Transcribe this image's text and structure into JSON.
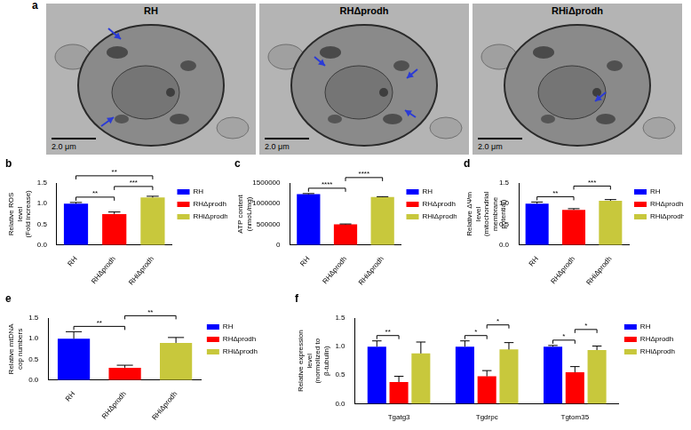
{
  "images": {
    "panel": "a",
    "titles": [
      "RH",
      "RHΔprodh",
      "RHiΔprodh"
    ],
    "scale_bar": "2.0 μm"
  },
  "chart_data": [
    {
      "type": "bar",
      "panel": "b",
      "y_label": "Relative ROS level (Fold increase)",
      "categories": [
        "RH",
        "RHΔprodh",
        "RHiΔprodh"
      ],
      "values": [
        1.0,
        0.75,
        1.15
      ],
      "errors": [
        0.03,
        0.05,
        0.03
      ],
      "colors": [
        "#0000ff",
        "#ff0000",
        "#c8c83c"
      ],
      "ylim": [
        0,
        1.5
      ],
      "yticks": [
        {
          "value": 0,
          "label": "0.0"
        },
        0.5,
        {
          "value": 1,
          "label": "1.0"
        },
        1.5
      ],
      "grid": false,
      "legend": "right",
      "annotations": [
        {
          "from": "RH",
          "to": "RHΔprodh",
          "label": "**"
        },
        {
          "from": "RH",
          "to": "RHiΔprodh",
          "label": "**"
        },
        {
          "from": "RHΔprodh",
          "to": "RHiΔprodh",
          "label": "***"
        }
      ]
    },
    {
      "type": "bar",
      "panel": "c",
      "y_label": "ATP content (nmoL/mg)",
      "categories": [
        "RH",
        "RHΔprodh",
        "RHiΔprodh"
      ],
      "values": [
        1230000,
        500000,
        1160000
      ],
      "errors": [
        15000,
        10000,
        10000
      ],
      "colors": [
        "#0000ff",
        "#ff0000",
        "#c8c83c"
      ],
      "ylim": [
        0,
        1500000
      ],
      "yticks": [
        0,
        500000,
        1000000,
        1500000
      ],
      "grid": false,
      "legend": "right",
      "annotations": [
        {
          "from": "RH",
          "to": "RHΔprodh",
          "label": "****"
        },
        {
          "from": "RHΔprodh",
          "to": "RHiΔprodh",
          "label": "****"
        }
      ]
    },
    {
      "type": "bar",
      "panel": "d",
      "y_label": "Relative ΔΨm level (mitochondrial membrane potential)",
      "categories": [
        "RH",
        "RHΔprodh",
        "RHiΔprodh"
      ],
      "values": [
        1.0,
        0.85,
        1.07
      ],
      "errors": [
        0.04,
        0.03,
        0.03
      ],
      "colors": [
        "#0000ff",
        "#ff0000",
        "#c8c83c"
      ],
      "ylim": [
        0,
        1.5
      ],
      "yticks": [
        {
          "value": 0,
          "label": "0.0"
        },
        0.5,
        {
          "value": 1,
          "label": "1.0"
        },
        1.5
      ],
      "grid": false,
      "legend": "right",
      "annotations": [
        {
          "from": "RH",
          "to": "RHΔprodh",
          "label": "**"
        },
        {
          "from": "RHΔprodh",
          "to": "RHiΔprodh",
          "label": "***"
        }
      ]
    },
    {
      "type": "bar",
      "panel": "e",
      "y_label": "Relative mtDNA cop numbers",
      "categories": [
        "RH",
        "RHΔprodh",
        "RHiΔprodh"
      ],
      "values": [
        1.0,
        0.3,
        0.9
      ],
      "errors": [
        0.17,
        0.06,
        0.13
      ],
      "colors": [
        "#0000ff",
        "#ff0000",
        "#c8c83c"
      ],
      "ylim": [
        0,
        1.5
      ],
      "yticks": [
        {
          "value": 0,
          "label": "0.0"
        },
        0.5,
        {
          "value": 1,
          "label": "1.0"
        },
        1.5
      ],
      "grid": false,
      "legend": "right",
      "annotations": [
        {
          "from": "RH",
          "to": "RHΔprodh",
          "label": "**"
        },
        {
          "from": "RHΔprodh",
          "to": "RHiΔprodh",
          "label": "**"
        }
      ]
    },
    {
      "type": "bar",
      "panel": "f",
      "y_label": "Relative expression level (normolized to β-tubulin)",
      "categories": [
        "Tgatg3",
        "Tgdrpc",
        "Tgtom35"
      ],
      "series": [
        {
          "name": "RH",
          "color": "#0000ff",
          "values": [
            1.0,
            1.0,
            1.0
          ],
          "errors": [
            0.1,
            0.1,
            0.02
          ]
        },
        {
          "name": "RHΔprodh",
          "color": "#ff0000",
          "values": [
            0.38,
            0.48,
            0.55
          ],
          "errors": [
            0.1,
            0.1,
            0.1
          ]
        },
        {
          "name": "RHiΔprodh",
          "color": "#c8c83c",
          "values": [
            0.88,
            0.95,
            0.94
          ],
          "errors": [
            0.2,
            0.12,
            0.07
          ]
        }
      ],
      "ylim": [
        0,
        1.5
      ],
      "yticks": [
        {
          "value": 0,
          "label": "0.0"
        },
        0.5,
        {
          "value": 1,
          "label": "1.0"
        },
        1.5
      ],
      "grid": false,
      "legend": "right",
      "annotations": [
        {
          "category": "Tgatg3",
          "from": "RH",
          "to": "RHΔprodh",
          "label": "**"
        },
        {
          "category": "Tgdrpc",
          "from": "RH",
          "to": "RHΔprodh",
          "label": "*"
        },
        {
          "category": "Tgdrpc",
          "from": "RHΔprodh",
          "to": "RHiΔprodh",
          "label": "*"
        },
        {
          "category": "Tgtom35",
          "from": "RH",
          "to": "RHΔprodh",
          "label": "*"
        },
        {
          "category": "Tgtom35",
          "from": "RHΔprodh",
          "to": "RHiΔprodh",
          "label": "*"
        }
      ]
    }
  ]
}
